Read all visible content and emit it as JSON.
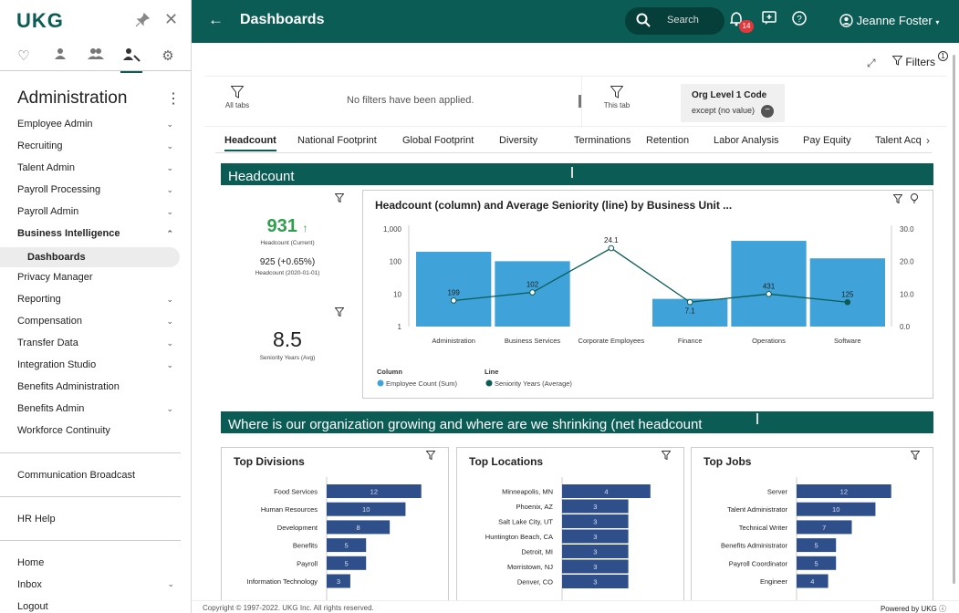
{
  "sidebar": {
    "logo": "UKG",
    "title": "Administration",
    "items": [
      {
        "label": "Employee Admin",
        "chev": true
      },
      {
        "label": "Recruiting",
        "chev": true
      },
      {
        "label": "Talent Admin",
        "chev": true
      },
      {
        "label": "Payroll Processing",
        "chev": true
      },
      {
        "label": "Payroll Admin",
        "chev": true
      },
      {
        "label": "Business Intelligence",
        "chev": true,
        "expanded": true
      },
      {
        "label": "Dashboards",
        "sub": true
      },
      {
        "label": "Privacy Manager",
        "chev": false
      },
      {
        "label": "Reporting",
        "chev": true
      },
      {
        "label": "Compensation",
        "chev": true
      },
      {
        "label": "Transfer Data",
        "chev": true
      },
      {
        "label": "Integration Studio",
        "chev": true
      },
      {
        "label": "Benefits Administration",
        "chev": false
      },
      {
        "label": "Benefits Admin",
        "chev": true
      },
      {
        "label": "Workforce Continuity",
        "chev": false
      }
    ],
    "communication": "Communication Broadcast",
    "hr_help": "HR Help",
    "home": "Home",
    "inbox": "Inbox",
    "logout": "Logout"
  },
  "topbar": {
    "title": "Dashboards",
    "search_label": "Search",
    "notification_count": "14",
    "user_name": "Jeanne Foster"
  },
  "toolbar": {
    "filters_label": "Filters",
    "filters_count": "1"
  },
  "filterbar": {
    "all_tabs": "All tabs",
    "no_filters": "No filters have been applied.",
    "this_tab": "This tab",
    "org_title": "Org Level 1 Code",
    "org_sub": "except (no value)"
  },
  "tabs": [
    "Headcount",
    "National Footprint",
    "Global Footprint",
    "Diversity",
    "Terminations",
    "Retention",
    "Labor Analysis",
    "Pay Equity",
    "Talent Acq"
  ],
  "sections": {
    "headcount": "Headcount",
    "growth": "Where is our organization growing and where are we shrinking (net headcount"
  },
  "kpis": {
    "headcount_value": "931",
    "headcount_label": "Headcount (Current)",
    "headcount_prev": "925 (+0.65%)",
    "headcount_prev_label": "Headcount (2020-01-01)",
    "seniority_value": "8.5",
    "seniority_label": "Seniority Years (Avg)"
  },
  "chart_data": [
    {
      "type": "bar",
      "title": "Headcount (column) and Average Seniority (line) by Business Unit ...",
      "categories": [
        "Administration",
        "Business Services",
        "Corporate Employees",
        "Finance",
        "Operations",
        "Software"
      ],
      "series": [
        {
          "name": "Employee Count (Sum)",
          "kind": "column",
          "values": [
            199,
            102,
            null,
            7.1,
            431,
            125
          ],
          "color": "#3fa3d9"
        },
        {
          "name": "Seniority Years (Average)",
          "kind": "line",
          "values": [
            8,
            10.5,
            24.1,
            7.5,
            10,
            7.5
          ],
          "color": "#0a5c55"
        }
      ],
      "data_labels": [
        "199",
        "102",
        "24.1",
        "7.1",
        "431",
        "125"
      ],
      "y_left_ticks": [
        "1,000",
        "100",
        "10",
        "1"
      ],
      "y_right_ticks": [
        "30.0",
        "20.0",
        "10.0",
        "0.0"
      ],
      "ylim_right": [
        0,
        30
      ],
      "legend": {
        "column_title": "Column",
        "line_title": "Line"
      }
    },
    {
      "type": "bar",
      "title": "Top Divisions",
      "categories": [
        "Food Services",
        "Human Resources",
        "Development",
        "Benefits",
        "Payroll",
        "Information Technology"
      ],
      "values": [
        12,
        10,
        8,
        5,
        5,
        3
      ]
    },
    {
      "type": "bar",
      "title": "Top Locations",
      "categories": [
        "Minneapolis, MN",
        "Phoenix, AZ",
        "Salt Lake City, UT",
        "Huntington Beach, CA",
        "Detroit, MI",
        "Morristown, NJ",
        "Denver, CO"
      ],
      "values": [
        4,
        3,
        3,
        3,
        3,
        3,
        3
      ]
    },
    {
      "type": "bar",
      "title": "Top Jobs",
      "categories": [
        "Server",
        "Talent Administrator",
        "Technical Writer",
        "Benefits Administrator",
        "Payroll Coordinator",
        "Engineer"
      ],
      "values": [
        12,
        10,
        7,
        5,
        5,
        4
      ]
    }
  ],
  "footer": {
    "copyright": "Copyright © 1997-2022. UKG Inc. All rights reserved.",
    "powered": "Powered by UKG"
  }
}
